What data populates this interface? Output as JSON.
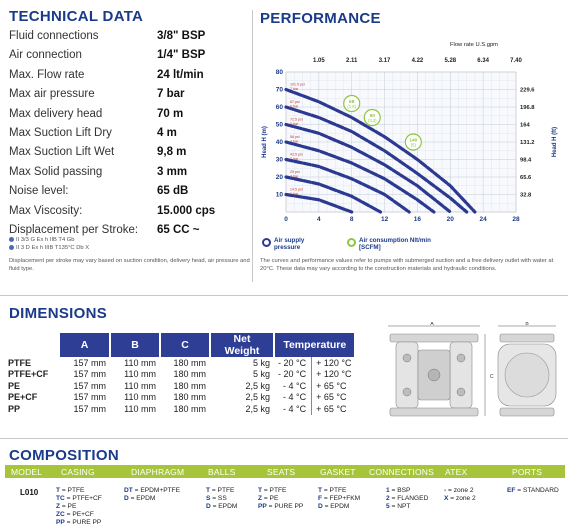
{
  "technical": {
    "title": "TECHNICAL DATA",
    "rows": [
      {
        "label": "Fluid connections",
        "value": "3/8\" BSP"
      },
      {
        "label": "Air connection",
        "value": "1/4\" BSP"
      },
      {
        "label": "Max. Flow rate",
        "value": "24 lt/min"
      },
      {
        "label": "Max air pressure",
        "value": "7 bar"
      },
      {
        "label": "Max delivery head",
        "value": "70 m"
      },
      {
        "label": "Max Suction Lift Dry",
        "value": "4 m"
      },
      {
        "label": "Max Suction Lift Wet",
        "value": "9,8 m"
      },
      {
        "label": "Max Solid passing",
        "value": "3 mm"
      },
      {
        "label": "Noise level:",
        "value": "65 dB"
      },
      {
        "label": "Max Viscosity:",
        "value": "15.000 cps"
      },
      {
        "label": "Displacement per Stroke:",
        "value": "65 CC ~"
      }
    ],
    "ex_marks": [
      "II 3/3 G Ex h IIB T4 Gb",
      "II 3 D Ex h IIIB T135°C Db X"
    ],
    "note": "Displacement per stroke may vary based on suction condition, delivery head, air pressure and fluid type."
  },
  "performance": {
    "title": "PERFORMANCE",
    "legend_supply": "Air supply pressure",
    "legend_consumption": "Air consumption Nlt/min [SCFM]",
    "note": "The curves and performance values refer to pumps with submerged suction and a free delivery outlet with water at 20°C. These data may vary according to the construction materials and hydraulic conditions."
  },
  "chart_data": {
    "type": "line",
    "title": "",
    "xlabel": "",
    "ylabel": "Head H (m)",
    "ylabel_right": "Head H (ft)",
    "top_axis_label": "Flow rate U.S.gpm",
    "xlim": [
      0,
      28
    ],
    "ylim": [
      0,
      80
    ],
    "x_ticks": [
      "0",
      "4",
      "8",
      "12",
      "16",
      "20",
      "24",
      "28"
    ],
    "y_ticks": [
      "10",
      "20",
      "30",
      "40",
      "50",
      "60",
      "70",
      "80"
    ],
    "top_ticks": [
      "1.05",
      "2.11",
      "3.17",
      "4.22",
      "5.28",
      "6.34",
      "7.40"
    ],
    "right_ticks": [
      "32.8",
      "65.6",
      "98.4",
      "131.2",
      "164",
      "196.8",
      "229.6"
    ],
    "grid": true,
    "pressure_labels": [
      "101.5 psi 7 bar",
      "87 psi 6 bar",
      "72.5 psi 5 bar",
      "58 psi 4 bar",
      "43.5 psi 3 bar",
      "29 psi 2 bar",
      "14.5 psi 1 bar"
    ],
    "series": [
      {
        "x": [
          0,
          4,
          8,
          12,
          16,
          20,
          23
        ],
        "values": [
          70,
          63,
          54,
          43,
          30,
          15,
          0
        ]
      },
      {
        "x": [
          0,
          4,
          8,
          12,
          16,
          20,
          22
        ],
        "values": [
          60,
          54,
          46,
          35,
          22,
          8,
          0
        ]
      },
      {
        "x": [
          0,
          4,
          8,
          12,
          16,
          20
        ],
        "values": [
          50,
          45,
          37,
          27,
          15,
          0
        ]
      },
      {
        "x": [
          0,
          4,
          8,
          12,
          16,
          18
        ],
        "values": [
          40,
          35,
          28,
          19,
          7,
          0
        ]
      },
      {
        "x": [
          0,
          4,
          8,
          12,
          15
        ],
        "values": [
          30,
          26,
          19,
          10,
          0
        ]
      },
      {
        "x": [
          0,
          4,
          8,
          11.5
        ],
        "values": [
          20,
          16,
          9,
          0
        ]
      },
      {
        "x": [
          0,
          4,
          8
        ],
        "values": [
          10,
          7,
          0
        ]
      }
    ],
    "consumption": [
      {
        "label": "68",
        "sub": "(1,8)",
        "x": 8,
        "y": 62
      },
      {
        "label": "90",
        "sub": "(3,2)",
        "x": 10.5,
        "y": 54
      },
      {
        "label": "140",
        "sub": "(5)",
        "x": 15.5,
        "y": 40
      }
    ]
  },
  "dimensions": {
    "title": "DIMENSIONS",
    "headers": [
      "A",
      "B",
      "C",
      "Net Weight",
      "Temperature"
    ],
    "rows": [
      {
        "model": "PTFE",
        "a": "157 mm",
        "b": "110 mm",
        "c": "180 mm",
        "w": "5 kg",
        "t1": "- 20 °C",
        "t2": "+ 120 °C"
      },
      {
        "model": "PTFE+CF",
        "a": "157 mm",
        "b": "110 mm",
        "c": "180 mm",
        "w": "5 kg",
        "t1": "- 20 °C",
        "t2": "+ 120 °C"
      },
      {
        "model": "PE",
        "a": "157 mm",
        "b": "110 mm",
        "c": "180 mm",
        "w": "2,5 kg",
        "t1": "- 4 °C",
        "t2": "+ 65 °C"
      },
      {
        "model": "PE+CF",
        "a": "157 mm",
        "b": "110 mm",
        "c": "180 mm",
        "w": "2,5 kg",
        "t1": "- 4 °C",
        "t2": "+ 65 °C"
      },
      {
        "model": "PP",
        "a": "157 mm",
        "b": "110 mm",
        "c": "180 mm",
        "w": "2,5 kg",
        "t1": "- 4 °C",
        "t2": "+ 65 °C"
      }
    ],
    "drawing_labels": [
      "A",
      "B",
      "C"
    ]
  },
  "composition": {
    "title": "COMPOSITION",
    "headers": [
      "MODEL",
      "CASING",
      "DIAPHRAGM",
      "BALLS",
      "SEATS",
      "GASKET",
      "CONNECTIONS",
      "ATEX",
      "PORTS"
    ],
    "model": "L010",
    "casing": [
      [
        "T",
        "PTFE"
      ],
      [
        "TC",
        "PTFE+CF"
      ],
      [
        "Z",
        "PE"
      ],
      [
        "ZC",
        "PE+CF"
      ],
      [
        "PP",
        "PURE PP"
      ]
    ],
    "diaphragm": [
      [
        "DT",
        "EPDM+PTFE"
      ],
      [
        "D",
        "EPDM"
      ]
    ],
    "balls": [
      [
        "T",
        "PTFE"
      ],
      [
        "S",
        "SS"
      ],
      [
        "D",
        "EPDM"
      ]
    ],
    "seats": [
      [
        "T",
        "PTFE"
      ],
      [
        "Z",
        "PE"
      ],
      [
        "PP",
        "PURE PP"
      ]
    ],
    "gasket": [
      [
        "T",
        "PTFE"
      ],
      [
        "F",
        "FEP+FKM"
      ],
      [
        "D",
        "EPDM"
      ]
    ],
    "connections": [
      [
        "1",
        "BSP"
      ],
      [
        "2",
        "FLANGED"
      ],
      [
        "5",
        "NPT"
      ]
    ],
    "atex": [
      [
        "-",
        "zone 2"
      ],
      [
        "X",
        "zone 2"
      ]
    ],
    "ports": [
      [
        "EF",
        "STANDARD"
      ]
    ]
  },
  "colors": {
    "brand": "#1a3a8a",
    "curve": "#2b3990",
    "consumption": "#8dc63f",
    "composition_bar": "#a6c53a"
  }
}
